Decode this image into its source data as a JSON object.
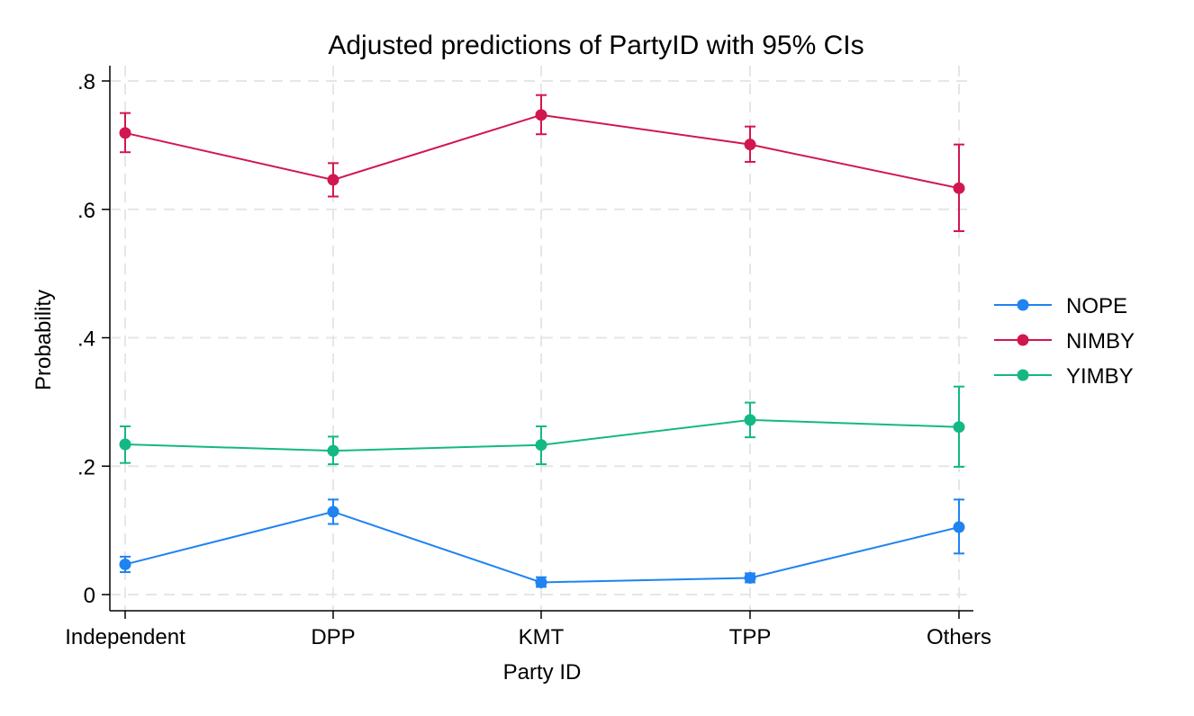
{
  "chart_data": {
    "type": "line",
    "title": "Adjusted predictions of PartyID with 95% CIs",
    "xlabel": "Party ID",
    "ylabel": "Probability",
    "categories": [
      "Independent",
      "DPP",
      "KMT",
      "TPP",
      "Others"
    ],
    "ylim": [
      -0.025,
      0.825
    ],
    "yticks": [
      0,
      0.2,
      0.4,
      0.6,
      0.8
    ],
    "ytick_labels": [
      "0",
      ".2",
      ".4",
      ".6",
      ".8"
    ],
    "grid": true,
    "legend_position": "right",
    "series": [
      {
        "name": "NOPE",
        "color": "#1f83f0",
        "values": [
          0.047,
          0.129,
          0.019,
          0.026,
          0.105
        ],
        "ci_low": [
          0.035,
          0.11,
          0.012,
          0.019,
          0.064
        ],
        "ci_high": [
          0.059,
          0.148,
          0.027,
          0.033,
          0.148
        ]
      },
      {
        "name": "NIMBY",
        "color": "#d1174f",
        "values": [
          0.719,
          0.646,
          0.747,
          0.701,
          0.633
        ],
        "ci_low": [
          0.689,
          0.62,
          0.717,
          0.674,
          0.566
        ],
        "ci_high": [
          0.75,
          0.672,
          0.778,
          0.729,
          0.701
        ]
      },
      {
        "name": "YIMBY",
        "color": "#14b884",
        "values": [
          0.234,
          0.224,
          0.233,
          0.272,
          0.261
        ],
        "ci_low": [
          0.205,
          0.203,
          0.203,
          0.245,
          0.199
        ],
        "ci_high": [
          0.262,
          0.246,
          0.262,
          0.299,
          0.324
        ]
      }
    ]
  }
}
